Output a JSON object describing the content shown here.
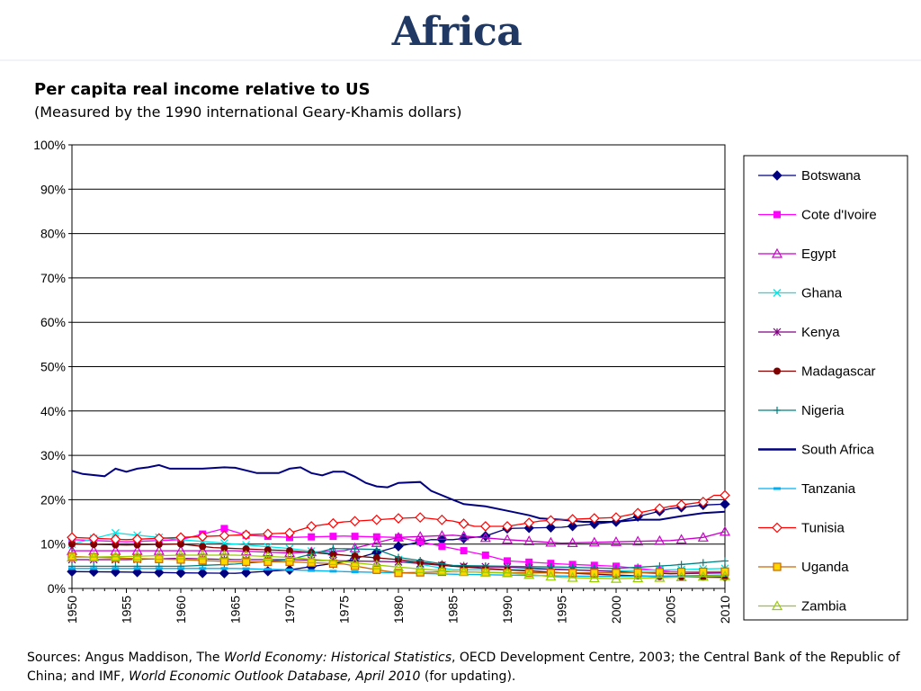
{
  "slide": {
    "title": "Africa"
  },
  "sources": {
    "p1": "Sources: Angus Maddison, The ",
    "i1": "World Economy: Historical Statistics",
    "p2": ", OECD Development Centre, 2003; the Central Bank of the Republic of China; and IMF, ",
    "i2": "World Economic Outlook Database, April 2010",
    "p3": " (for updating)."
  },
  "chart_data": {
    "type": "line",
    "title": "Per capita real income relative to US",
    "subtitle": "(Measured by the 1990 international Geary-Khamis dollars)",
    "xlabel": "",
    "ylabel": "",
    "x_range": [
      1950,
      2010
    ],
    "x_ticks": [
      "1950",
      "1955",
      "1960",
      "1965",
      "1970",
      "1975",
      "1980",
      "1985",
      "1990",
      "1995",
      "2000",
      "2005",
      "2010"
    ],
    "ylim": [
      0,
      100
    ],
    "y_ticks": [
      "0%",
      "10%",
      "20%",
      "30%",
      "40%",
      "50%",
      "60%",
      "70%",
      "80%",
      "90%",
      "100%"
    ],
    "grid": "horizontal",
    "legend_position": "right",
    "series": [
      {
        "name": "Botswana",
        "color": "#000080",
        "marker": "diamond-filled",
        "points": [
          [
            1950,
            3.8
          ],
          [
            1955,
            3.7
          ],
          [
            1960,
            3.5
          ],
          [
            1965,
            3.4
          ],
          [
            1970,
            4.2
          ],
          [
            1975,
            6.0
          ],
          [
            1980,
            9.5
          ],
          [
            1983,
            11
          ],
          [
            1985,
            11
          ],
          [
            1988,
            11.8
          ],
          [
            1990,
            13.5
          ],
          [
            1995,
            13.8
          ],
          [
            2000,
            15
          ],
          [
            2005,
            18
          ],
          [
            2008,
            18.8
          ],
          [
            2010,
            19
          ]
        ]
      },
      {
        "name": "Cote d'Ivoire",
        "color": "#FF00FF",
        "marker": "square-filled",
        "points": [
          [
            1950,
            11
          ],
          [
            1955,
            10.5
          ],
          [
            1960,
            11
          ],
          [
            1964,
            13.5
          ],
          [
            1966,
            12
          ],
          [
            1970,
            11.5
          ],
          [
            1975,
            11.8
          ],
          [
            1980,
            11.5
          ],
          [
            1982,
            10.5
          ],
          [
            1985,
            9
          ],
          [
            1988,
            7.5
          ],
          [
            1990,
            6.2
          ],
          [
            1995,
            5.5
          ],
          [
            2000,
            5
          ],
          [
            2005,
            3.8
          ],
          [
            2010,
            3.5
          ]
        ]
      },
      {
        "name": "Egypt",
        "color": "#CC00CC",
        "marker": "triangle-open",
        "points": [
          [
            1950,
            8.5
          ],
          [
            1955,
            8.5
          ],
          [
            1960,
            8.5
          ],
          [
            1965,
            8.5
          ],
          [
            1970,
            8
          ],
          [
            1975,
            8.5
          ],
          [
            1980,
            11.5
          ],
          [
            1985,
            12
          ],
          [
            1990,
            11
          ],
          [
            1995,
            10.2
          ],
          [
            2000,
            10.5
          ],
          [
            2005,
            10.8
          ],
          [
            2008,
            11.5
          ],
          [
            2010,
            12.8
          ]
        ]
      },
      {
        "name": "Ghana",
        "color": "#00E5E5",
        "marker": "x",
        "points": [
          [
            1950,
            10
          ],
          [
            1954,
            12.5
          ],
          [
            1958,
            11.5
          ],
          [
            1960,
            11
          ],
          [
            1965,
            10
          ],
          [
            1970,
            9
          ],
          [
            1975,
            7.5
          ],
          [
            1980,
            6.5
          ],
          [
            1983,
            5
          ],
          [
            1985,
            4.2
          ],
          [
            1990,
            4.2
          ],
          [
            1995,
            4.2
          ],
          [
            2000,
            4
          ],
          [
            2005,
            4.2
          ],
          [
            2010,
            4.5
          ]
        ]
      },
      {
        "name": "Kenya",
        "color": "#800080",
        "marker": "asterisk",
        "points": [
          [
            1950,
            6.5
          ],
          [
            1955,
            6.5
          ],
          [
            1960,
            6.8
          ],
          [
            1965,
            6.5
          ],
          [
            1970,
            6.5
          ],
          [
            1975,
            6.2
          ],
          [
            1980,
            6
          ],
          [
            1985,
            5
          ],
          [
            1990,
            4.8
          ],
          [
            1995,
            4.3
          ],
          [
            2000,
            3.8
          ],
          [
            2005,
            3.3
          ],
          [
            2010,
            3.5
          ]
        ]
      },
      {
        "name": "Madagascar",
        "color": "#800000",
        "marker": "circle-filled",
        "points": [
          [
            1950,
            10
          ],
          [
            1955,
            9.8
          ],
          [
            1960,
            10
          ],
          [
            1963,
            9.2
          ],
          [
            1965,
            9
          ],
          [
            1970,
            8.5
          ],
          [
            1975,
            7.5
          ],
          [
            1980,
            6.5
          ],
          [
            1985,
            5
          ],
          [
            1990,
            4.2
          ],
          [
            1995,
            3.5
          ],
          [
            2000,
            3
          ],
          [
            2005,
            2.6
          ],
          [
            2010,
            2.5
          ]
        ]
      },
      {
        "name": "Nigeria",
        "color": "#008080",
        "marker": "plus",
        "points": [
          [
            1950,
            5
          ],
          [
            1955,
            5
          ],
          [
            1960,
            5
          ],
          [
            1965,
            5.5
          ],
          [
            1970,
            6.5
          ],
          [
            1974,
            9
          ],
          [
            1978,
            8.8
          ],
          [
            1980,
            7
          ],
          [
            1985,
            5.2
          ],
          [
            1990,
            5
          ],
          [
            1995,
            4.8
          ],
          [
            2000,
            4.5
          ],
          [
            2005,
            5.2
          ],
          [
            2010,
            6.2
          ]
        ]
      },
      {
        "name": "South Africa",
        "color": "#000080",
        "marker": "none",
        "points": [
          [
            1950,
            26.5
          ],
          [
            1951,
            25.8
          ],
          [
            1953,
            25.3
          ],
          [
            1954,
            27
          ],
          [
            1955,
            26.3
          ],
          [
            1956,
            27
          ],
          [
            1957,
            27.3
          ],
          [
            1958,
            27.8
          ],
          [
            1959,
            27
          ],
          [
            1960,
            27
          ],
          [
            1962,
            27
          ],
          [
            1964,
            27.3
          ],
          [
            1965,
            27.2
          ],
          [
            1967,
            26
          ],
          [
            1969,
            26
          ],
          [
            1970,
            27
          ],
          [
            1971,
            27.3
          ],
          [
            1972,
            26
          ],
          [
            1973,
            25.5
          ],
          [
            1974,
            26.3
          ],
          [
            1975,
            26.3
          ],
          [
            1976,
            25.2
          ],
          [
            1977,
            23.8
          ],
          [
            1978,
            23
          ],
          [
            1979,
            22.8
          ],
          [
            1980,
            23.8
          ],
          [
            1982,
            24
          ],
          [
            1983,
            22
          ],
          [
            1985,
            20
          ],
          [
            1986,
            19
          ],
          [
            1988,
            18.5
          ],
          [
            1990,
            17.5
          ],
          [
            1992,
            16.5
          ],
          [
            1993,
            15.8
          ],
          [
            1995,
            15.5
          ],
          [
            1997,
            15
          ],
          [
            2000,
            15
          ],
          [
            2002,
            15.5
          ],
          [
            2004,
            15.5
          ],
          [
            2006,
            16.3
          ],
          [
            2008,
            17
          ],
          [
            2010,
            17.3
          ]
        ]
      },
      {
        "name": "Tanzania",
        "color": "#00B0F0",
        "marker": "dash",
        "points": [
          [
            1950,
            4.5
          ],
          [
            1955,
            4.5
          ],
          [
            1960,
            4.5
          ],
          [
            1965,
            4.5
          ],
          [
            1970,
            4.2
          ],
          [
            1975,
            3.8
          ],
          [
            1980,
            3.5
          ],
          [
            1985,
            3.2
          ],
          [
            1990,
            3
          ],
          [
            1995,
            2.8
          ],
          [
            2000,
            2.7
          ],
          [
            2005,
            2.8
          ],
          [
            2010,
            3
          ]
        ]
      },
      {
        "name": "Tunisia",
        "color": "#FF0000",
        "marker": "diamond-open",
        "points": [
          [
            1950,
            11.5
          ],
          [
            1955,
            11
          ],
          [
            1960,
            11.5
          ],
          [
            1965,
            12
          ],
          [
            1970,
            12.5
          ],
          [
            1972,
            14
          ],
          [
            1975,
            15
          ],
          [
            1980,
            15.8
          ],
          [
            1982,
            16
          ],
          [
            1985,
            15.2
          ],
          [
            1987,
            14
          ],
          [
            1990,
            14
          ],
          [
            1993,
            15.2
          ],
          [
            1995,
            15.5
          ],
          [
            2000,
            16
          ],
          [
            2005,
            18.5
          ],
          [
            2008,
            19.5
          ],
          [
            2009,
            21
          ],
          [
            2010,
            21
          ]
        ]
      },
      {
        "name": "Uganda",
        "color": "#CC6600",
        "marker": "square-open",
        "points": [
          [
            1950,
            7.2
          ],
          [
            1955,
            6.8
          ],
          [
            1960,
            6.5
          ],
          [
            1965,
            6
          ],
          [
            1970,
            6
          ],
          [
            1975,
            5.5
          ],
          [
            1978,
            4.2
          ],
          [
            1980,
            3.5
          ],
          [
            1985,
            3.8
          ],
          [
            1990,
            3.5
          ],
          [
            1995,
            3.5
          ],
          [
            2000,
            3.5
          ],
          [
            2005,
            3.7
          ],
          [
            2010,
            3.8
          ]
        ]
      },
      {
        "name": "Zambia",
        "color": "#99CC00",
        "marker": "triangle-open",
        "points": [
          [
            1950,
            7
          ],
          [
            1955,
            7.2
          ],
          [
            1960,
            7.5
          ],
          [
            1965,
            7.5
          ],
          [
            1970,
            7
          ],
          [
            1975,
            6
          ],
          [
            1980,
            4.8
          ],
          [
            1985,
            3.8
          ],
          [
            1990,
            3.5
          ],
          [
            1995,
            2.5
          ],
          [
            2000,
            2.2
          ],
          [
            2005,
            2.5
          ],
          [
            2010,
            2.8
          ]
        ]
      }
    ]
  }
}
